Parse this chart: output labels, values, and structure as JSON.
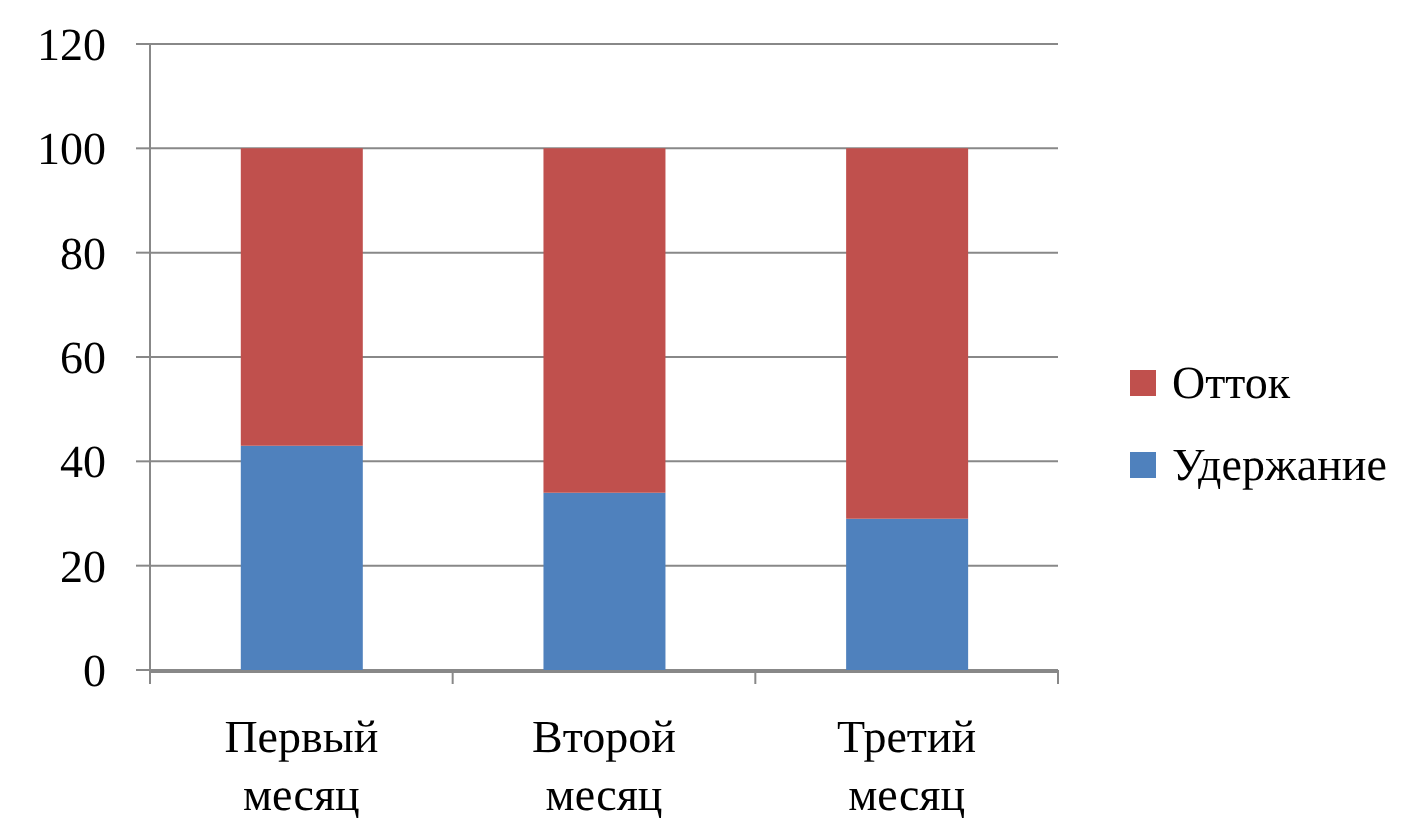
{
  "chart_data": {
    "type": "bar",
    "categories": [
      "Первый месяц",
      "Второй месяц",
      "Третий месяц"
    ],
    "series": [
      {
        "name": "Удержание",
        "color": "#4f81bd",
        "values": [
          43,
          34,
          29
        ]
      },
      {
        "name": "Отток",
        "color": "#c0504d",
        "values": [
          57,
          66,
          71
        ]
      }
    ],
    "stacked": true,
    "ylim": [
      0,
      120
    ],
    "yticks": [
      0,
      20,
      40,
      60,
      80,
      100,
      120
    ],
    "grid": "y",
    "legend": "right"
  }
}
